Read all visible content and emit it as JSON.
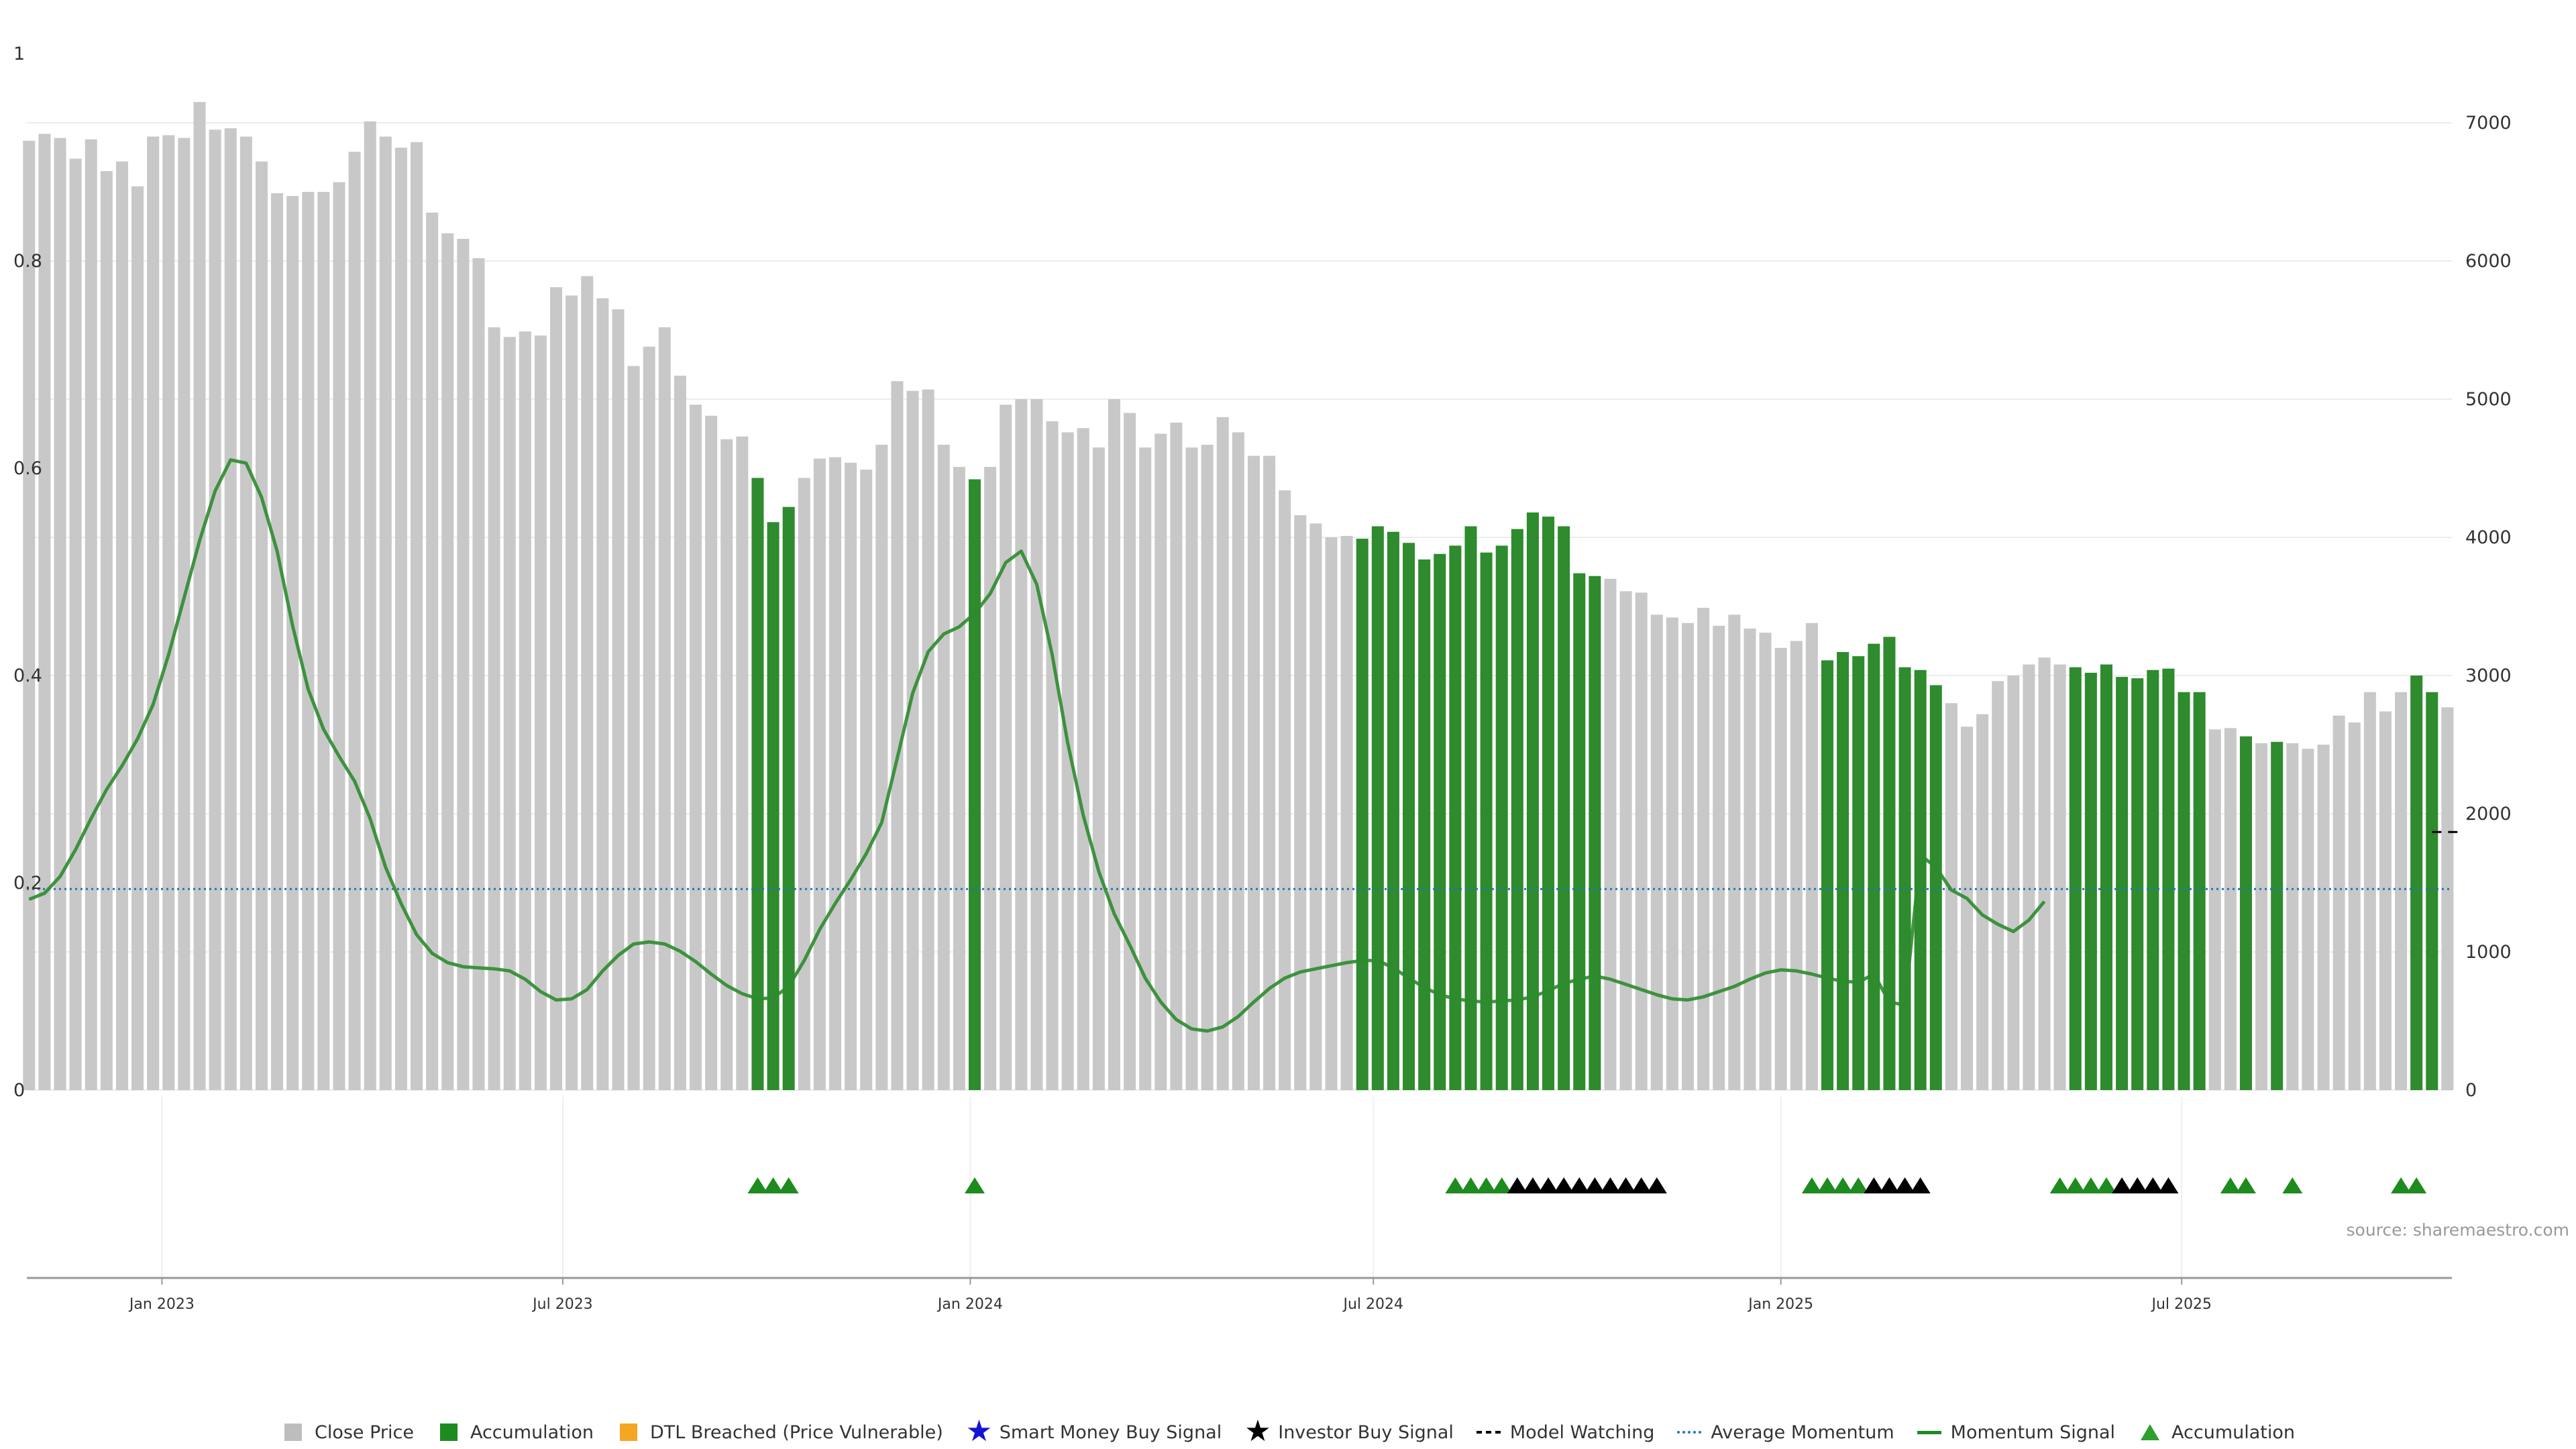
{
  "source": "source: sharemaestro.com",
  "legend": [
    {
      "label": "Close Price",
      "kind": "square",
      "color": "#bdbdbd",
      "icon": "gray-square-icon"
    },
    {
      "label": "Accumulation",
      "kind": "square",
      "color": "#1e8b1e",
      "icon": "green-square-icon"
    },
    {
      "label": "DTL Breached (Price Vulnerable)",
      "kind": "square",
      "color": "#f5a623",
      "icon": "orange-square-icon"
    },
    {
      "label": "Smart Money Buy Signal",
      "kind": "star",
      "color": "#1414d6",
      "icon": "blue-star-icon"
    },
    {
      "label": "Investor Buy Signal",
      "kind": "star",
      "color": "#000000",
      "icon": "black-star-icon"
    },
    {
      "label": "Model Watching",
      "kind": "dash",
      "color": "#000000",
      "icon": "dashed-line-icon"
    },
    {
      "label": "Average Momentum",
      "kind": "dot",
      "color": "#1f77b4",
      "icon": "dotted-line-icon"
    },
    {
      "label": "Momentum Signal",
      "kind": "solid",
      "color": "#1e8b1e",
      "icon": "solid-line-icon"
    },
    {
      "label": "Accumulation",
      "kind": "triangle",
      "color": "#2ca02c",
      "icon": "green-triangle-icon"
    }
  ],
  "chart_data": {
    "type": "bar",
    "left_axis": {
      "ylim": [
        0,
        1
      ],
      "ticks": [
        "0",
        "0.2",
        "0.4",
        "0.6",
        "0.8",
        "1"
      ]
    },
    "right_axis": {
      "ylim": [
        0,
        7500
      ],
      "ticks": [
        "0",
        "1000",
        "2000",
        "3000",
        "4000",
        "5000",
        "6000",
        "7000"
      ]
    },
    "x_axis": {
      "start": "2022-11-01",
      "end": "2025-10-31",
      "ticks": [
        {
          "date": "2023-01-01",
          "label": "Jan 2023"
        },
        {
          "date": "2023-07-01",
          "label": "Jul 2023"
        },
        {
          "date": "2024-01-01",
          "label": "Jan 2024"
        },
        {
          "date": "2024-07-01",
          "label": "Jul 2024"
        },
        {
          "date": "2025-01-01",
          "label": "Jan 2025"
        },
        {
          "date": "2025-07-01",
          "label": "Jul 2025"
        }
      ]
    },
    "bar_start": "2022-11-02",
    "bar_interval_days": 7,
    "close_prices": [
      6870,
      6920,
      6890,
      6740,
      6880,
      6650,
      6720,
      6540,
      6900,
      6910,
      6890,
      7150,
      6950,
      6960,
      6900,
      6720,
      6490,
      6470,
      6500,
      6500,
      6570,
      6790,
      7010,
      6900,
      6820,
      6860,
      6350,
      6200,
      6160,
      6020,
      5520,
      5450,
      5490,
      5460,
      5810,
      5750,
      5890,
      5730,
      5650,
      5240,
      5380,
      5520,
      5170,
      4960,
      4880,
      4710,
      4730,
      4430,
      4110,
      4220,
      4430,
      4570,
      4580,
      4540,
      4490,
      4670,
      5130,
      5060,
      5070,
      4670,
      4510,
      4420,
      4510,
      4960,
      5000,
      5000,
      4840,
      4760,
      4790,
      4650,
      5000,
      4900,
      4650,
      4750,
      4830,
      4650,
      4670,
      4870,
      4760,
      4590,
      4590,
      4340,
      4160,
      4100,
      4000,
      4010,
      3990,
      4080,
      4040,
      3960,
      3840,
      3880,
      3940,
      4080,
      3890,
      3940,
      4060,
      4180,
      4150,
      4080,
      3740,
      3720,
      3700,
      3610,
      3600,
      3440,
      3420,
      3380,
      3490,
      3360,
      3440,
      3340,
      3310,
      3200,
      3250,
      3380,
      3110,
      3170,
      3140,
      3230,
      3280,
      3060,
      3040,
      2930,
      2800,
      2630,
      2720,
      2960,
      3000,
      3080,
      3130,
      3080,
      3060,
      3020,
      3080,
      2990,
      2980,
      3040,
      3050,
      2880,
      2880,
      2610,
      2620,
      2560,
      2510,
      2520,
      2510,
      2470,
      2500,
      2710,
      2660,
      2880,
      2740,
      2880,
      3000,
      2880,
      2770
    ],
    "accumulation_bars": [
      47,
      48,
      49,
      61,
      86,
      87,
      88,
      89,
      90,
      91,
      92,
      93,
      94,
      95,
      96,
      97,
      98,
      99,
      100,
      101,
      116,
      117,
      118,
      119,
      120,
      121,
      122,
      123,
      132,
      133,
      134,
      135,
      136,
      137,
      138,
      139,
      140,
      143,
      145,
      154,
      155
    ],
    "momentum": [
      0.184,
      0.19,
      0.206,
      0.232,
      0.262,
      0.29,
      0.313,
      0.339,
      0.372,
      0.42,
      0.475,
      0.53,
      0.578,
      0.608,
      0.605,
      0.572,
      0.52,
      0.448,
      0.387,
      0.348,
      0.322,
      0.298,
      0.262,
      0.215,
      0.18,
      0.15,
      0.132,
      0.123,
      0.119,
      0.118,
      0.117,
      0.115,
      0.107,
      0.095,
      0.087,
      0.088,
      0.097,
      0.115,
      0.13,
      0.141,
      0.143,
      0.141,
      0.134,
      0.124,
      0.112,
      0.101,
      0.093,
      0.088,
      0.089,
      0.1,
      0.125,
      0.155,
      0.18,
      0.203,
      0.228,
      0.258,
      0.32,
      0.383,
      0.423,
      0.44,
      0.447,
      0.46,
      0.479,
      0.509,
      0.52,
      0.488,
      0.42,
      0.335,
      0.265,
      0.211,
      0.17,
      0.14,
      0.108,
      0.085,
      0.068,
      0.059,
      0.057,
      0.061,
      0.071,
      0.085,
      0.098,
      0.108,
      0.114,
      0.117,
      0.12,
      0.123,
      0.125,
      0.125,
      0.118,
      0.108,
      0.099,
      0.092,
      0.088,
      0.086,
      0.085,
      0.086,
      0.087,
      0.09,
      0.096,
      0.103,
      0.107,
      0.11,
      0.107,
      0.102,
      0.097,
      0.092,
      0.088,
      0.087,
      0.09,
      0.095,
      0.1,
      0.107,
      0.113,
      0.116,
      0.115,
      0.112,
      0.108,
      0.105,
      0.104,
      0.112,
      0.085,
      0.082,
      0.227,
      0.215,
      0.193,
      0.185,
      0.169,
      0.16,
      0.153,
      0.164,
      0.182
    ],
    "momentum_start_index": 0,
    "average_momentum": 0.194,
    "model_watching": {
      "value": 0.249,
      "from_index": 155,
      "to_index": 157
    },
    "signals": [
      {
        "index": 47,
        "type": "accumulation"
      },
      {
        "index": 48,
        "type": "accumulation"
      },
      {
        "index": 49,
        "type": "accumulation"
      },
      {
        "index": 61,
        "type": "accumulation"
      },
      {
        "index": 92,
        "type": "accumulation"
      },
      {
        "index": 93,
        "type": "accumulation"
      },
      {
        "index": 94,
        "type": "accumulation"
      },
      {
        "index": 95,
        "type": "accumulation"
      },
      {
        "index": 96,
        "type": "investor"
      },
      {
        "index": 97,
        "type": "investor"
      },
      {
        "index": 98,
        "type": "investor"
      },
      {
        "index": 99,
        "type": "investor"
      },
      {
        "index": 100,
        "type": "investor"
      },
      {
        "index": 101,
        "type": "investor"
      },
      {
        "index": 102,
        "type": "investor"
      },
      {
        "index": 103,
        "type": "investor"
      },
      {
        "index": 104,
        "type": "investor"
      },
      {
        "index": 105,
        "type": "investor"
      },
      {
        "index": 115,
        "type": "accumulation"
      },
      {
        "index": 116,
        "type": "accumulation"
      },
      {
        "index": 117,
        "type": "accumulation"
      },
      {
        "index": 118,
        "type": "accumulation"
      },
      {
        "index": 119,
        "type": "investor"
      },
      {
        "index": 120,
        "type": "investor"
      },
      {
        "index": 121,
        "type": "investor"
      },
      {
        "index": 122,
        "type": "investor"
      },
      {
        "index": 131,
        "type": "accumulation"
      },
      {
        "index": 132,
        "type": "accumulation"
      },
      {
        "index": 133,
        "type": "accumulation"
      },
      {
        "index": 134,
        "type": "accumulation"
      },
      {
        "index": 135,
        "type": "investor"
      },
      {
        "index": 136,
        "type": "investor"
      },
      {
        "index": 137,
        "type": "investor"
      },
      {
        "index": 138,
        "type": "investor"
      },
      {
        "index": 142,
        "type": "accumulation"
      },
      {
        "index": 143,
        "type": "accumulation"
      },
      {
        "index": 146,
        "type": "accumulation"
      },
      {
        "index": 153,
        "type": "accumulation"
      },
      {
        "index": 154,
        "type": "accumulation"
      }
    ],
    "colors": {
      "close": "#c8c8c8",
      "accumulation": "#2e8b2e",
      "momentum": "#2e8b2e",
      "average": "#1f77b4",
      "signal_accumulation": "#1e8b1e",
      "signal_investor": "#000000"
    }
  }
}
